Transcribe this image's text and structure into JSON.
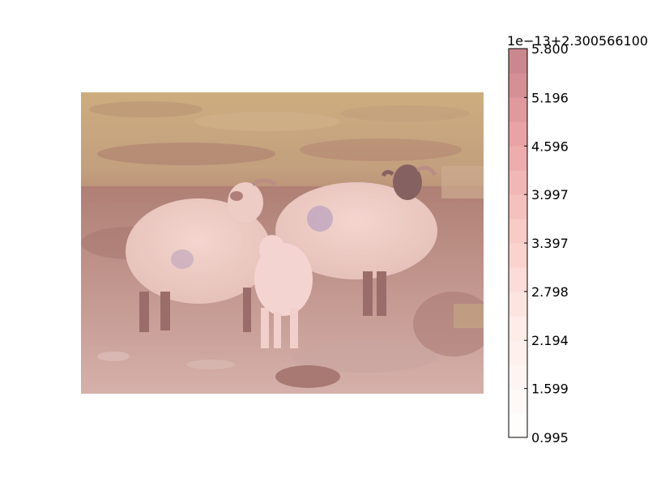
{
  "chart_data": {
    "type": "heatmap",
    "image_description": "Photo of sheep and a lamb on rocky moorland, overlaid with a translucent red colormap",
    "colormap": "Reds",
    "colorbar": {
      "offset_label": "1e−13+2.300566100",
      "ticks": [
        {
          "value": 0.995,
          "label": "0.995"
        },
        {
          "value": 1.599,
          "label": "1.599"
        },
        {
          "value": 2.194,
          "label": "2.194"
        },
        {
          "value": 2.798,
          "label": "2.798"
        },
        {
          "value": 3.397,
          "label": "3.397"
        },
        {
          "value": 3.997,
          "label": "3.997"
        },
        {
          "value": 4.596,
          "label": "4.596"
        },
        {
          "value": 5.196,
          "label": "5.196"
        },
        {
          "value": 5.8,
          "label": "5.800"
        }
      ],
      "levels": 16,
      "range": [
        0.995,
        5.8
      ]
    }
  }
}
